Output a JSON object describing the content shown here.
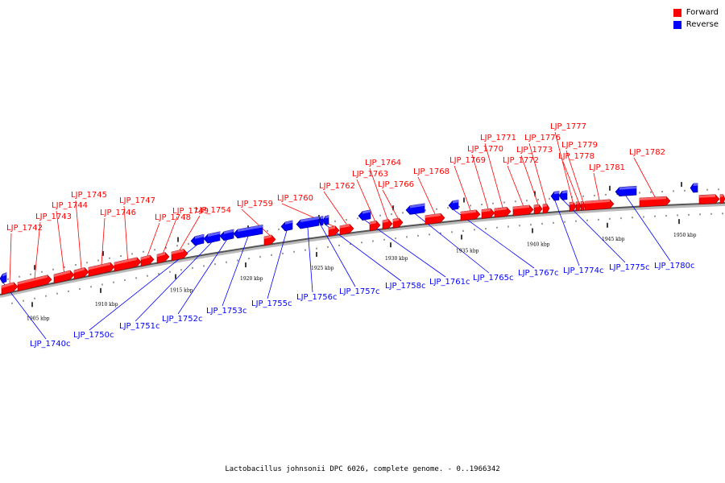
{
  "legend": {
    "forward_label": "Forward",
    "reverse_label": "Reverse",
    "forward_color": "#ff0000",
    "reverse_color": "#0000ff"
  },
  "caption": "Lactobacillus johnsonii DPC 6026, complete genome. - 0..1966342",
  "kbp_labels": [
    "1905 kbp",
    "1910 kbp",
    "1915 kbp",
    "1920 kbp",
    "1925 kbp",
    "1930 kbp",
    "1935 kbp",
    "1940 kbp",
    "1945 kbp",
    "1950 kbp"
  ],
  "forward_genes": [
    "LJP_1742",
    "LJP_1743",
    "LJP_1744",
    "LJP_1745",
    "LJP_1746",
    "LJP_1747",
    "LJP_1748",
    "LJP_1749",
    "LJP_1754",
    "LJP_1759",
    "LJP_1760",
    "LJP_1762",
    "LJP_1763",
    "LJP_1764",
    "LJP_1766",
    "LJP_1768",
    "LJP_1769",
    "LJP_1770",
    "LJP_1771",
    "LJP_1772",
    "LJP_1773",
    "LJP_1776",
    "LJP_1777",
    "LJP_1778",
    "LJP_1779",
    "LJP_1781",
    "LJP_1782"
  ],
  "reverse_genes": [
    "LJP_1740c",
    "LJP_1750c",
    "LJP_1751c",
    "LJP_1752c",
    "LJP_1753c",
    "LJP_1755c",
    "LJP_1756c",
    "LJP_1757c",
    "LJP_1758c",
    "LJP_1761c",
    "LJP_1765c",
    "LJP_1767c",
    "LJP_1774c",
    "LJP_1775c",
    "LJP_1780c"
  ]
}
